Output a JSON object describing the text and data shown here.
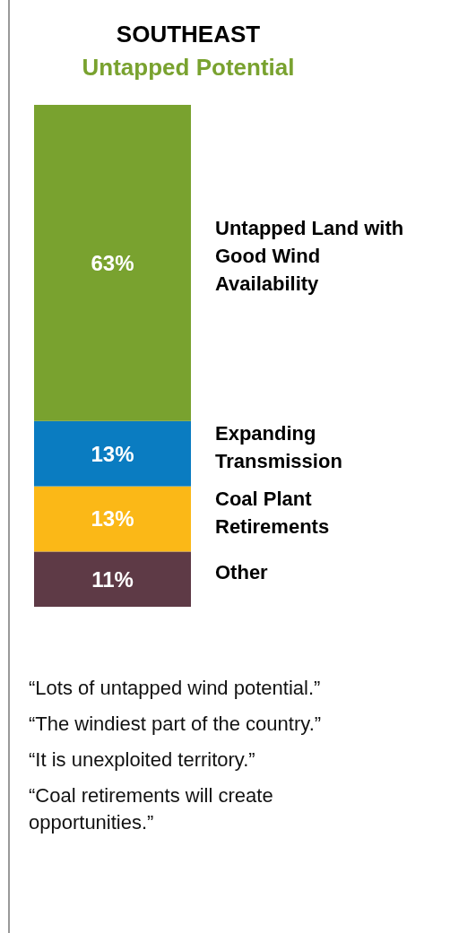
{
  "chart_data": {
    "type": "bar",
    "stacked": true,
    "title": "SOUTHEAST",
    "subtitle": "Untapped Potential",
    "categories": [
      null
    ],
    "series": [
      {
        "name": "Other",
        "color": "#5e3a46",
        "values": [
          11
        ],
        "value_labels": [
          "11%"
        ]
      },
      {
        "name": "Coal Plant Retirements",
        "color": "#fbb817",
        "values": [
          13
        ],
        "value_labels": [
          "13%"
        ]
      },
      {
        "name": "Expanding Transmission",
        "color": "#0a7cc1",
        "values": [
          13
        ],
        "value_labels": [
          "13%"
        ]
      },
      {
        "name": "Untapped Land with Good Wind Availability",
        "color": "#79a22f",
        "values": [
          63
        ],
        "value_labels": [
          "63%"
        ]
      }
    ],
    "annotations": [
      "“Lots of untapped wind potential.”",
      "“The windiest part of the country.”",
      "“It is unexploited territory.”",
      "“Coal retirements will create opportunities.”"
    ]
  }
}
